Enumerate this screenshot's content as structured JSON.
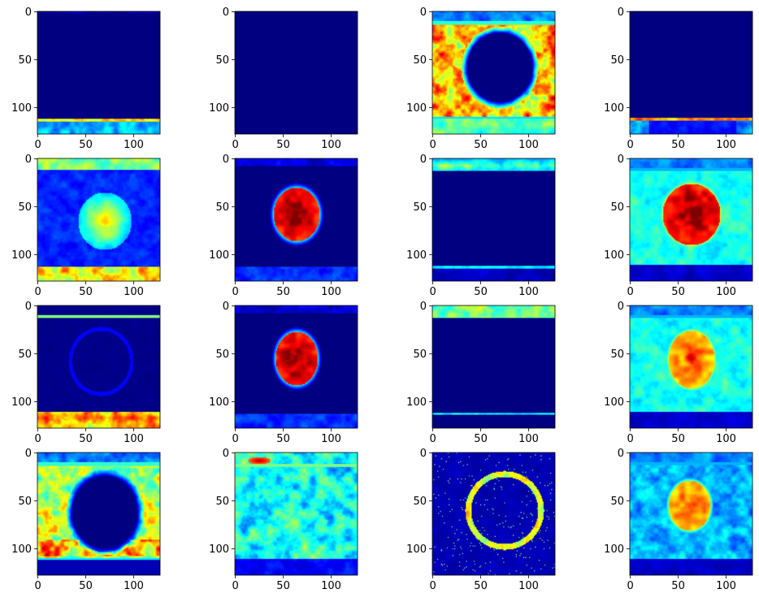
{
  "chart_data": {
    "type": "heatmap",
    "layout": "4x4 grid of subplots",
    "colormap": "jet",
    "grid": false,
    "image_shape": [
      128,
      128
    ],
    "x_ticks": [
      "0",
      "50",
      "100"
    ],
    "y_ticks": [
      "0",
      "50",
      "100"
    ],
    "xlim": [
      -0.5,
      127.5
    ],
    "ylim": [
      127.5,
      -0.5
    ],
    "panels": [
      {
        "row": 0,
        "col": 0,
        "pattern": "bottom-band",
        "band_intensity": 0.6
      },
      {
        "row": 0,
        "col": 1,
        "pattern": "empty"
      },
      {
        "row": 0,
        "col": 2,
        "pattern": "ring-hole-high",
        "hole_center": [
          70,
          58
        ],
        "hole_radius": [
          34,
          36
        ]
      },
      {
        "row": 0,
        "col": 3,
        "pattern": "bottom-band-thin",
        "band_intensity": 0.7
      },
      {
        "row": 1,
        "col": 0,
        "pattern": "bands-soft-blob",
        "blob_center": [
          70,
          65
        ],
        "blob_radius": [
          28,
          30
        ]
      },
      {
        "row": 1,
        "col": 1,
        "pattern": "hot-blob",
        "blob_center": [
          64,
          58
        ],
        "blob_radius": [
          24,
          28
        ]
      },
      {
        "row": 1,
        "col": 2,
        "pattern": "top-band",
        "band_intensity": 0.55
      },
      {
        "row": 1,
        "col": 3,
        "pattern": "hot-blob-cyan-bg",
        "blob_center": [
          64,
          58
        ],
        "blob_radius": [
          30,
          32
        ]
      },
      {
        "row": 2,
        "col": 0,
        "pattern": "bands-faint-ring",
        "blob_center": [
          66,
          58
        ],
        "blob_radius": [
          32,
          34
        ]
      },
      {
        "row": 2,
        "col": 1,
        "pattern": "hot-blob",
        "blob_center": [
          64,
          55
        ],
        "blob_radius": [
          22,
          28
        ]
      },
      {
        "row": 2,
        "col": 2,
        "pattern": "top-band-strong",
        "band_intensity": 0.55
      },
      {
        "row": 2,
        "col": 3,
        "pattern": "warm-blob-cyan-bg",
        "blob_center": [
          64,
          56
        ],
        "blob_radius": [
          24,
          30
        ]
      },
      {
        "row": 3,
        "col": 0,
        "pattern": "ring-hole-mid",
        "hole_center": [
          70,
          62
        ],
        "hole_radius": [
          34,
          38
        ]
      },
      {
        "row": 3,
        "col": 1,
        "pattern": "noisy-top-hot",
        "hot_spot": [
          25,
          8
        ]
      },
      {
        "row": 3,
        "col": 2,
        "pattern": "edge-ring",
        "ring_center": [
          75,
          60
        ],
        "ring_radius": [
          38,
          38
        ]
      },
      {
        "row": 3,
        "col": 3,
        "pattern": "warm-blob-noisy",
        "blob_center": [
          62,
          55
        ],
        "blob_radius": [
          22,
          26
        ]
      }
    ]
  },
  "colors": {
    "background": "#ffffff",
    "axis": "#000000",
    "colormap_low": "#00007f",
    "colormap_high": "#7f0000"
  }
}
